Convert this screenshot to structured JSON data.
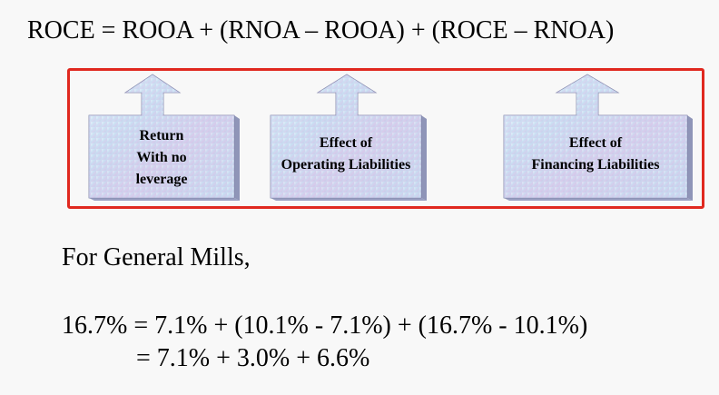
{
  "equation": "ROCE = ROOA + (RNOA – ROOA) + (ROCE – RNOA)",
  "components": [
    {
      "label": "Return\nWith no\nleverage"
    },
    {
      "label": "Effect of\nOperating Liabilities"
    },
    {
      "label": "Effect of\nFinancing Liabilities"
    }
  ],
  "example": {
    "intro": "For General Mills,",
    "line1": "16.7% = 7.1% + (10.1% - 7.1%) + (16.7% - 10.1%)",
    "line2": "= 7.1% + 3.0% + 6.6%"
  },
  "colors": {
    "frame_border": "#e0281f",
    "arrow_fill_light": "#e6f3fa",
    "arrow_fill_mid": "#bcd6ee",
    "arrow_fill_pink": "#dcc6e8",
    "arrow_side": "#8f95b8",
    "arrow_outline": "#7b7fa5"
  }
}
